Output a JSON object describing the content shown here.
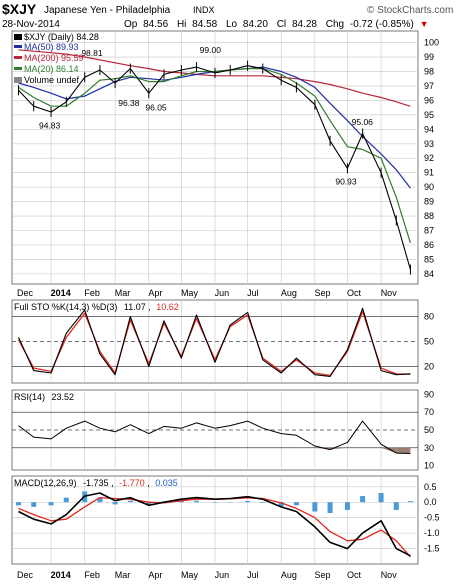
{
  "header": {
    "symbol": "$XJY",
    "name": "Japanese Yen - Philadelphia",
    "exchange": "INDX",
    "brand": "© StockCharts.com",
    "date": "28-Nov-2014",
    "op_label": "Op",
    "op": "84.56",
    "hi_label": "Hi",
    "hi": "84.58",
    "lo_label": "Lo",
    "lo": "84.20",
    "cl_label": "Cl",
    "cl": "84.28",
    "chg_label": "Chg",
    "chg": "-0.72 (-0.85%)",
    "chg_arrow": "▼"
  },
  "legend": {
    "price": "$XJY (Daily) 84.28",
    "ma50": "MA(50) 89.93",
    "ma200": "MA(200) 95.59",
    "ma20": "MA(20) 86.14",
    "volume": "Volume undef"
  },
  "colors": {
    "price": "#000000",
    "ma50": "#1f2ea8",
    "ma200": "#b8263a",
    "ma20": "#2f7d2f",
    "signal": "#e0281e",
    "histogram": "#4a9bd8",
    "rsi_fill": "#8a6a5e",
    "grid": "#c8c8c8",
    "panel_border": "#7a7a7a",
    "chg_neg": "#cc0000",
    "value_blue": "#1f5fbf"
  },
  "months": [
    "Dec",
    "2014",
    "Feb",
    "Mar",
    "Apr",
    "May",
    "Jun",
    "Jul",
    "Aug",
    "Sep",
    "Oct",
    "Nov"
  ],
  "sto_legend": {
    "label": "Full STO %K(14,3) %D(3)",
    "k": "11.07",
    "d": "10.62"
  },
  "rsi_legend": {
    "label": "RSI(14)",
    "value": "23.52"
  },
  "macd_legend": {
    "label": "MACD(12,26,9)",
    "macd": "-1.735",
    "signal": "-1.770",
    "hist": "0.035"
  },
  "chart_data": [
    {
      "type": "line",
      "panel": "price",
      "ylim": [
        83.3,
        100.8
      ],
      "y_ticks": [
        84,
        85,
        86,
        87,
        88,
        89,
        90,
        91,
        92,
        93,
        94,
        95,
        96,
        97,
        98,
        99,
        100
      ],
      "x": [
        "2013-12-02",
        "2013-12-16",
        "2014-01-01",
        "2014-01-15",
        "2014-02-01",
        "2014-02-15",
        "2014-03-01",
        "2014-03-15",
        "2014-04-01",
        "2014-04-15",
        "2014-05-01",
        "2014-05-15",
        "2014-06-01",
        "2014-06-15",
        "2014-07-01",
        "2014-07-15",
        "2014-08-01",
        "2014-08-15",
        "2014-09-01",
        "2014-09-15",
        "2014-10-01",
        "2014-10-15",
        "2014-11-01",
        "2014-11-15",
        "2014-11-28"
      ],
      "series": [
        {
          "name": "$XJY",
          "values": [
            96.7,
            95.6,
            95.2,
            95.9,
            97.6,
            98.1,
            97.2,
            98.2,
            96.5,
            97.8,
            98.1,
            98.3,
            97.9,
            98.1,
            98.4,
            98.2,
            97.4,
            96.9,
            95.7,
            93.2,
            91.3,
            93.7,
            91.0,
            87.7,
            84.3
          ]
        },
        {
          "name": "MA(50)",
          "values": [
            97.2,
            96.9,
            96.5,
            96.1,
            96.3,
            96.8,
            97.3,
            97.6,
            97.5,
            97.4,
            97.6,
            97.8,
            98.0,
            98.1,
            98.2,
            98.3,
            98.0,
            97.6,
            96.9,
            95.8,
            94.6,
            93.5,
            92.3,
            91.2,
            89.93
          ]
        },
        {
          "name": "MA(200)",
          "values": [
            99.5,
            99.4,
            99.3,
            99.2,
            99.0,
            98.8,
            98.6,
            98.4,
            98.2,
            98.0,
            97.9,
            97.8,
            97.7,
            97.7,
            97.7,
            97.7,
            97.6,
            97.5,
            97.3,
            97.1,
            96.8,
            96.5,
            96.2,
            95.9,
            95.59
          ]
        },
        {
          "name": "MA(20)",
          "values": [
            96.9,
            96.2,
            95.6,
            95.6,
            96.5,
            97.4,
            97.5,
            97.7,
            97.3,
            97.3,
            97.7,
            98.0,
            98.0,
            98.1,
            98.2,
            98.2,
            97.8,
            97.2,
            96.3,
            94.6,
            92.8,
            92.6,
            92.0,
            89.3,
            86.14
          ]
        }
      ],
      "annotations": [
        {
          "x": "2013-12-31",
          "y": 94.83,
          "text": "94.83"
        },
        {
          "x": "2014-02-08",
          "y": 98.81,
          "text": "98.81"
        },
        {
          "x": "2014-03-14",
          "y": 96.38,
          "text": "96.38"
        },
        {
          "x": "2014-04-08",
          "y": 96.05,
          "text": "96.05"
        },
        {
          "x": "2014-05-28",
          "y": 99.0,
          "text": "99.00"
        },
        {
          "x": "2014-09-30",
          "y": 90.93,
          "text": "90.93"
        },
        {
          "x": "2014-10-15",
          "y": 95.06,
          "text": "95.06"
        }
      ]
    },
    {
      "type": "line",
      "panel": "stochastic",
      "ylim": [
        0,
        100
      ],
      "y_ticks": [
        20,
        50,
        80
      ],
      "reference_lines": [
        20,
        50,
        80
      ],
      "x": [
        "2013-12-02",
        "2013-12-16",
        "2014-01-01",
        "2014-01-15",
        "2014-02-01",
        "2014-02-15",
        "2014-03-01",
        "2014-03-15",
        "2014-04-01",
        "2014-04-15",
        "2014-05-01",
        "2014-05-15",
        "2014-06-01",
        "2014-06-15",
        "2014-07-01",
        "2014-07-15",
        "2014-08-01",
        "2014-08-15",
        "2014-09-01",
        "2014-09-15",
        "2014-10-01",
        "2014-10-15",
        "2014-11-01",
        "2014-11-15",
        "2014-11-28"
      ],
      "series": [
        {
          "name": "%K",
          "values": [
            55,
            15,
            12,
            60,
            88,
            35,
            10,
            80,
            20,
            75,
            30,
            82,
            25,
            70,
            85,
            28,
            12,
            30,
            10,
            8,
            40,
            90,
            15,
            10,
            11.07
          ]
        },
        {
          "name": "%D",
          "values": [
            52,
            18,
            14,
            55,
            84,
            38,
            12,
            76,
            23,
            72,
            32,
            78,
            28,
            68,
            82,
            30,
            14,
            28,
            12,
            9,
            38,
            86,
            18,
            11,
            10.62
          ]
        }
      ]
    },
    {
      "type": "area",
      "panel": "rsi",
      "ylim": [
        5,
        95
      ],
      "y_ticks": [
        10,
        30,
        50,
        70,
        90
      ],
      "reference_lines": [
        30,
        50,
        70
      ],
      "x": [
        "2013-12-02",
        "2013-12-16",
        "2014-01-01",
        "2014-01-15",
        "2014-02-01",
        "2014-02-15",
        "2014-03-01",
        "2014-03-15",
        "2014-04-01",
        "2014-04-15",
        "2014-05-01",
        "2014-05-15",
        "2014-06-01",
        "2014-06-15",
        "2014-07-01",
        "2014-07-15",
        "2014-08-01",
        "2014-08-15",
        "2014-09-01",
        "2014-09-15",
        "2014-10-01",
        "2014-10-15",
        "2014-11-01",
        "2014-11-15",
        "2014-11-28"
      ],
      "series": [
        {
          "name": "RSI(14)",
          "values": [
            55,
            42,
            40,
            52,
            60,
            52,
            48,
            56,
            46,
            54,
            52,
            58,
            52,
            55,
            60,
            52,
            46,
            44,
            32,
            28,
            36,
            60,
            34,
            24,
            23.52
          ]
        }
      ]
    },
    {
      "type": "line",
      "panel": "macd",
      "ylim": [
        -2.0,
        0.85
      ],
      "y_ticks": [
        0.5,
        0.0,
        -0.5,
        -1.0,
        -1.5
      ],
      "x": [
        "2013-12-02",
        "2013-12-16",
        "2014-01-01",
        "2014-01-15",
        "2014-02-01",
        "2014-02-15",
        "2014-03-01",
        "2014-03-15",
        "2014-04-01",
        "2014-04-15",
        "2014-05-01",
        "2014-05-15",
        "2014-06-01",
        "2014-06-15",
        "2014-07-01",
        "2014-07-15",
        "2014-08-01",
        "2014-08-15",
        "2014-09-01",
        "2014-09-15",
        "2014-10-01",
        "2014-10-15",
        "2014-11-01",
        "2014-11-15",
        "2014-11-28"
      ],
      "series": [
        {
          "name": "MACD",
          "values": [
            -0.3,
            -0.55,
            -0.7,
            -0.4,
            0.2,
            0.3,
            0.05,
            0.15,
            -0.1,
            0.0,
            0.1,
            0.15,
            0.1,
            0.12,
            0.18,
            0.1,
            -0.15,
            -0.3,
            -0.8,
            -1.3,
            -1.5,
            -1.0,
            -0.6,
            -1.5,
            -1.735
          ]
        },
        {
          "name": "Signal",
          "values": [
            -0.2,
            -0.4,
            -0.6,
            -0.55,
            -0.15,
            0.15,
            0.12,
            0.1,
            0.0,
            -0.02,
            0.05,
            0.1,
            0.1,
            0.11,
            0.14,
            0.12,
            -0.02,
            -0.2,
            -0.5,
            -0.95,
            -1.25,
            -1.2,
            -0.9,
            -1.25,
            -1.77
          ]
        },
        {
          "name": "Histogram",
          "values": [
            -0.1,
            -0.15,
            -0.1,
            0.15,
            0.35,
            0.15,
            -0.07,
            0.05,
            -0.1,
            0.02,
            0.05,
            0.05,
            0.0,
            0.01,
            0.04,
            -0.02,
            -0.13,
            -0.1,
            -0.3,
            -0.35,
            -0.25,
            0.2,
            0.3,
            -0.25,
            0.035
          ]
        }
      ]
    }
  ]
}
